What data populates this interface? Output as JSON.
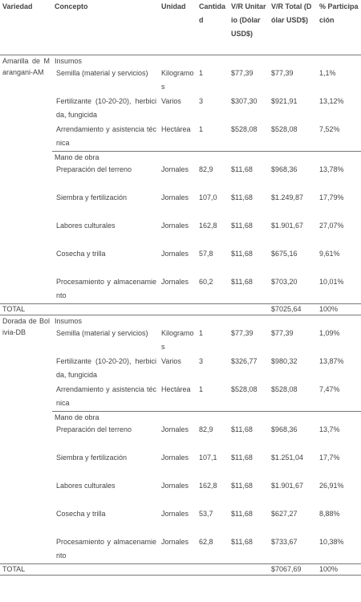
{
  "header": {
    "columns": [
      "Variedad",
      "Concepto",
      "Unidad",
      "Cantidad",
      "V/R Unitario (Dólar USD$)",
      "V/R Total (Dólar USD$)",
      "% Participación"
    ]
  },
  "sections": [
    {
      "variety": "Amarilla de Marangani-AM",
      "groups": [
        {
          "label": "Insumos",
          "rows": [
            [
              "Semilla (material y servicios)",
              "Kilogramos",
              "1",
              "$77,39",
              "$77,39",
              "1,1%"
            ],
            [
              "Fertilizante (10-20-20), herbicida, fungicida",
              "Varios",
              "3",
              "$307,30",
              "$921,91",
              "13,12%"
            ],
            [
              "Arrendamiento y asistencia técnica",
              "Hectárea",
              "1",
              "$528,08",
              "$528,08",
              "7,52%"
            ]
          ]
        },
        {
          "label": "Mano de obra",
          "rows": [
            [
              "Preparación del terreno",
              "Jornales",
              "82,9",
              "$11,68",
              "$968,36",
              "13,78%"
            ],
            [
              "Siembra y fertilización",
              "Jornales",
              "107,0",
              "$11,68",
              "$1.249,87",
              "17,79%"
            ],
            [
              "Labores culturales",
              "Jornales",
              "162,8",
              "$11,68",
              "$1.901,67",
              "27,07%"
            ],
            [
              "Cosecha y trilla",
              "Jornales",
              "57,8",
              "$11,68",
              "$675,16",
              "9,61%"
            ],
            [
              "Procesamiento y almacenamiento",
              "Jornales",
              "60,2",
              "$11,68",
              "$703,20",
              "10,01%"
            ]
          ]
        }
      ],
      "total": {
        "label": "TOTAL",
        "value": "$7025,64",
        "percent": "100%"
      }
    },
    {
      "variety": "Dorada de Bolivia-DB",
      "groups": [
        {
          "label": "Insumos",
          "rows": [
            [
              "Semilla (material y servicios)",
              "Kilogramos",
              "1",
              "$77,39",
              "$77,39",
              "1,09%"
            ],
            [
              "Fertilizante (10-20-20), herbicida, fungicida",
              "Varios",
              "3",
              "$326,77",
              "$980,32",
              "13,87%"
            ],
            [
              "Arrendamiento y asistencia técnica",
              "Hectárea",
              "1",
              "$528,08",
              "$528,08",
              "7,47%"
            ]
          ]
        },
        {
          "label": "Mano de obra",
          "rows": [
            [
              "Preparación del terreno",
              "Jornales",
              "82,9",
              "$11,68",
              "$968,36",
              "13,7%"
            ],
            [
              "Siembra y fertilización",
              "Jornales",
              "107,1",
              "$11,68",
              "$1.251,04",
              "17,7%"
            ],
            [
              "Labores culturales",
              "Jornales",
              "162,8",
              "$11,68",
              "$1.901,67",
              "26,91%"
            ],
            [
              "Cosecha y trilla",
              "Jornales",
              "53,7",
              "$11,68",
              "$627,27",
              "8,88%"
            ],
            [
              "Procesamiento y almacenamiento",
              "Jornales",
              "62,8",
              "$11,68",
              "$733,67",
              "10,38%"
            ]
          ]
        }
      ],
      "total": {
        "label": "TOTAL",
        "value": "$7067,69",
        "percent": "100%"
      }
    }
  ]
}
